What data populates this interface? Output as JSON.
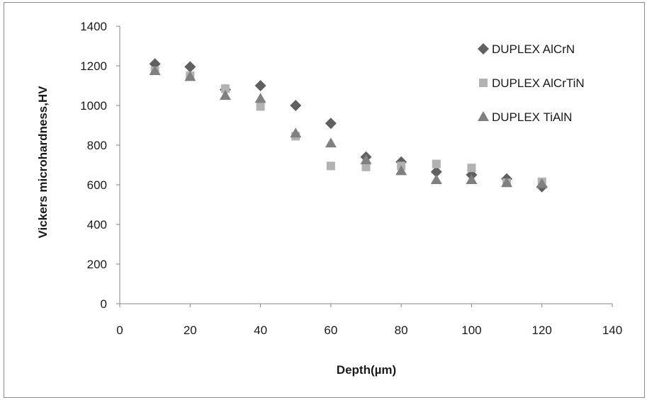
{
  "chart_data": {
    "type": "scatter",
    "title": "",
    "xlabel": "Depth(µm)",
    "ylabel": "Vickers microhardness,HV",
    "xlim": [
      0,
      140
    ],
    "ylim": [
      0,
      1400
    ],
    "xticks": [
      0,
      20,
      40,
      60,
      80,
      100,
      120,
      140
    ],
    "yticks": [
      0,
      200,
      400,
      600,
      800,
      1000,
      1200,
      1400
    ],
    "grid": false,
    "legend_position": "top-right",
    "series": [
      {
        "name": "DUPLEX AlCrN",
        "marker": "diamond",
        "color": "#606060",
        "x": [
          10,
          20,
          30,
          40,
          50,
          60,
          70,
          80,
          90,
          100,
          110,
          120
        ],
        "y": [
          1210,
          1195,
          1080,
          1100,
          1000,
          910,
          740,
          715,
          665,
          650,
          630,
          590
        ]
      },
      {
        "name": "DUPLEX AlCrTiN",
        "marker": "square",
        "color": "#b2b2b2",
        "x": [
          10,
          20,
          30,
          40,
          50,
          60,
          70,
          80,
          90,
          100,
          110,
          120
        ],
        "y": [
          1175,
          1150,
          1085,
          995,
          845,
          695,
          690,
          695,
          705,
          685,
          610,
          615
        ]
      },
      {
        "name": "DUPLEX TiAlN",
        "marker": "triangle",
        "color": "#808080",
        "x": [
          10,
          20,
          30,
          40,
          50,
          60,
          70,
          80,
          90,
          100,
          110,
          120
        ],
        "y": [
          1175,
          1145,
          1050,
          1035,
          860,
          810,
          725,
          670,
          625,
          625,
          610,
          605
        ]
      }
    ]
  }
}
